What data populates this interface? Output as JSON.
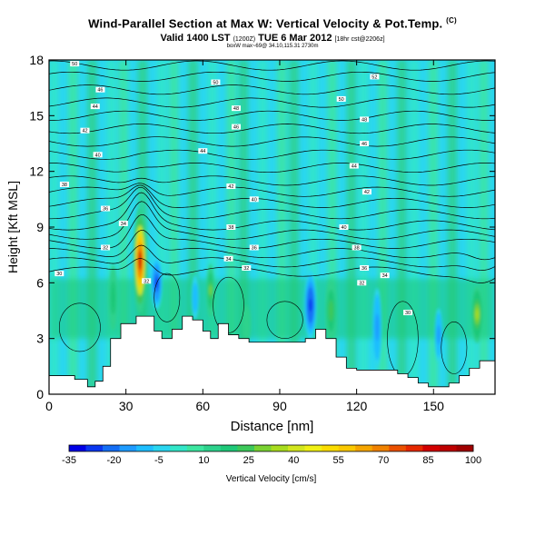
{
  "header": {
    "title": "Wind-Parallel Section at Max W: Vertical Velocity & Pot.Temp.",
    "title_sup": "(C)",
    "subtitle_main": "Valid 1400 LST",
    "subtitle_small1": "(1200Z)",
    "subtitle_mid": "TUE 6 Mar 2012",
    "subtitle_small2": "[18hr cst@2206z]",
    "source_line": "boxW max~69@ 34.10,115.31 2730m"
  },
  "chart_data": {
    "type": "heatmap",
    "title": "Wind-Parallel Section at Max W: Vertical Velocity & Pot.Temp.",
    "xlabel": "Distance [nm]",
    "ylabel": "Height [Kft MSL]",
    "xlim": [
      0,
      174
    ],
    "ylim": [
      0,
      18
    ],
    "xticks": [
      "0",
      "30",
      "60",
      "90",
      "120",
      "150"
    ],
    "xtick_values": [
      0,
      30,
      60,
      90,
      120,
      150
    ],
    "yticks": [
      "0",
      "3",
      "6",
      "9",
      "12",
      "15",
      "18"
    ],
    "ytick_values": [
      0,
      3,
      6,
      9,
      12,
      15,
      18
    ],
    "terrain": {
      "x": [
        0,
        5,
        10,
        15,
        18,
        21,
        24,
        28,
        31,
        34,
        38,
        41,
        44,
        48,
        52,
        56,
        60,
        63,
        66,
        70,
        74,
        78,
        84,
        90,
        96,
        100,
        104,
        108,
        112,
        116,
        120,
        124,
        128,
        132,
        136,
        140,
        144,
        148,
        152,
        156,
        160,
        164,
        168,
        174
      ],
      "y": [
        1.0,
        1.0,
        0.8,
        0.4,
        0.7,
        1.5,
        3.0,
        3.8,
        3.8,
        4.2,
        4.2,
        3.4,
        3.0,
        3.5,
        4.2,
        4.0,
        3.4,
        3.0,
        3.8,
        3.2,
        3.0,
        2.8,
        2.8,
        2.8,
        2.8,
        3.0,
        3.5,
        3.0,
        2.0,
        1.4,
        1.3,
        1.3,
        1.3,
        1.3,
        1.1,
        0.9,
        0.6,
        0.4,
        0.4,
        0.6,
        1.0,
        1.4,
        1.8,
        2.0
      ]
    },
    "updrafts": [
      {
        "x": 35.5,
        "y": 7.2,
        "rx": 2.0,
        "ry": 2.4,
        "value": 100
      },
      {
        "x": 63,
        "y": 5.6,
        "rx": 1.0,
        "ry": 1.2,
        "value": 30
      },
      {
        "x": 110,
        "y": 4.5,
        "rx": 1.5,
        "ry": 1.4,
        "value": 28
      },
      {
        "x": 167,
        "y": 4.3,
        "rx": 1.6,
        "ry": 1.3,
        "value": 38
      },
      {
        "x": 25,
        "y": 5.2,
        "rx": 1.2,
        "ry": 1.5,
        "value": 20
      },
      {
        "x": 77,
        "y": 3.8,
        "rx": 1.2,
        "ry": 0.8,
        "value": 15
      }
    ],
    "downdrafts": [
      {
        "x": 42,
        "y": 6.0,
        "rx": 1.6,
        "ry": 1.2,
        "value": -28
      },
      {
        "x": 102,
        "y": 4.8,
        "rx": 1.8,
        "ry": 1.6,
        "value": -32
      },
      {
        "x": 128,
        "y": 3.6,
        "rx": 1.2,
        "ry": 1.8,
        "value": -20
      },
      {
        "x": 152,
        "y": 3.2,
        "rx": 1.0,
        "ry": 1.2,
        "value": -18
      },
      {
        "x": 57,
        "y": 5.2,
        "rx": 1.0,
        "ry": 1.0,
        "value": -12
      }
    ],
    "isentropes_base_heights": [
      6.6,
      7.1,
      7.6,
      8.1,
      8.6,
      9.1,
      9.7,
      10.3,
      10.9,
      11.5,
      12.2,
      12.9,
      13.6,
      14.3,
      15.0,
      15.7,
      16.4,
      17.1,
      17.7
    ],
    "isentrope_labels": [
      {
        "x": 10,
        "y": 17.8,
        "text": "50"
      },
      {
        "x": 20,
        "y": 16.4,
        "text": "46"
      },
      {
        "x": 18,
        "y": 15.5,
        "text": "44"
      },
      {
        "x": 14,
        "y": 14.2,
        "text": "42"
      },
      {
        "x": 19,
        "y": 12.9,
        "text": "40"
      },
      {
        "x": 6,
        "y": 11.3,
        "text": "38"
      },
      {
        "x": 22,
        "y": 10.0,
        "text": "36"
      },
      {
        "x": 29,
        "y": 9.2,
        "text": "34"
      },
      {
        "x": 22,
        "y": 7.9,
        "text": "32"
      },
      {
        "x": 4,
        "y": 6.5,
        "text": "30"
      },
      {
        "x": 65,
        "y": 16.8,
        "text": "50"
      },
      {
        "x": 73,
        "y": 15.4,
        "text": "48"
      },
      {
        "x": 73,
        "y": 14.4,
        "text": "46"
      },
      {
        "x": 60,
        "y": 13.1,
        "text": "44"
      },
      {
        "x": 71,
        "y": 11.2,
        "text": "42"
      },
      {
        "x": 80,
        "y": 10.5,
        "text": "40"
      },
      {
        "x": 71,
        "y": 9.0,
        "text": "38"
      },
      {
        "x": 80,
        "y": 7.9,
        "text": "36"
      },
      {
        "x": 70,
        "y": 7.3,
        "text": "34"
      },
      {
        "x": 77,
        "y": 6.8,
        "text": "32"
      },
      {
        "x": 127,
        "y": 17.1,
        "text": "52"
      },
      {
        "x": 114,
        "y": 15.9,
        "text": "50"
      },
      {
        "x": 123,
        "y": 14.8,
        "text": "48"
      },
      {
        "x": 123,
        "y": 13.5,
        "text": "46"
      },
      {
        "x": 119,
        "y": 12.3,
        "text": "44"
      },
      {
        "x": 124,
        "y": 10.9,
        "text": "42"
      },
      {
        "x": 115,
        "y": 9.0,
        "text": "40"
      },
      {
        "x": 120,
        "y": 7.9,
        "text": "38"
      },
      {
        "x": 123,
        "y": 6.8,
        "text": "36"
      },
      {
        "x": 131,
        "y": 6.4,
        "text": "34"
      },
      {
        "x": 122,
        "y": 6.0,
        "text": "32"
      },
      {
        "x": 140,
        "y": 4.4,
        "text": "30"
      },
      {
        "x": 38,
        "y": 6.1,
        "text": "32"
      }
    ],
    "colorbar": {
      "label": "Vertical Velocity [cm/s]",
      "ticks": [
        "-35",
        "-20",
        "-5",
        "10",
        "25",
        "40",
        "55",
        "70",
        "85",
        "100"
      ],
      "colors": [
        "#0000e6",
        "#0a37f0",
        "#146ef5",
        "#1e9bff",
        "#1ebeff",
        "#2ad6f0",
        "#32e6c8",
        "#3ce6a0",
        "#2dd28c",
        "#1ec878",
        "#3cc85a",
        "#7ad232",
        "#a8dc1e",
        "#d2e61e",
        "#f0f014",
        "#fadc00",
        "#fac800",
        "#f5a500",
        "#f08200",
        "#eb5000",
        "#e62800",
        "#d20000",
        "#be0000",
        "#a00000"
      ]
    }
  }
}
